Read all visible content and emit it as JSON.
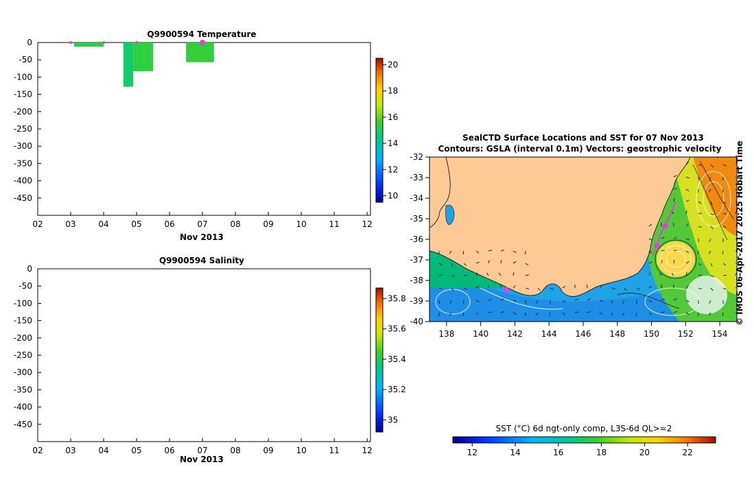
{
  "chart_data": [
    {
      "type": "heatmap",
      "title": "Q9900594  Temperature",
      "xlabel": "Nov 2013",
      "ylabel": "",
      "x_ticks": [
        "02",
        "03",
        "04",
        "05",
        "06",
        "07",
        "08",
        "09",
        "10",
        "11",
        "12"
      ],
      "y_ticks": [
        0,
        -50,
        -100,
        -150,
        -200,
        -250,
        -300,
        -350,
        -400,
        -450
      ],
      "xlim": [
        2,
        12.1
      ],
      "ylim": [
        -500,
        0
      ],
      "colorbar": {
        "ticks": [
          20,
          18,
          16,
          14,
          12,
          10
        ],
        "range": [
          9.5,
          20.5
        ]
      },
      "profiles": [
        {
          "x_start": 3.1,
          "x_end": 4.0,
          "depth": -12,
          "value": 15.2
        },
        {
          "x_start": 4.6,
          "x_end": 4.9,
          "depth": -128,
          "value": 14.8
        },
        {
          "x_start": 4.9,
          "x_end": 5.5,
          "depth": -83,
          "value": 15.3
        },
        {
          "x_start": 6.5,
          "x_end": 7.35,
          "depth": -57,
          "value": 15.4
        }
      ],
      "surface_markers_x": [
        3.0,
        4.0,
        5.0,
        7.0
      ]
    },
    {
      "type": "heatmap",
      "title": "Q9900594  Salinity",
      "xlabel": "Nov 2013",
      "ylabel": "",
      "x_ticks": [
        "02",
        "03",
        "04",
        "05",
        "06",
        "07",
        "08",
        "09",
        "10",
        "11",
        "12"
      ],
      "y_ticks": [
        0,
        -50,
        -100,
        -150,
        -200,
        -250,
        -300,
        -350,
        -400,
        -450
      ],
      "xlim": [
        2,
        12.1
      ],
      "ylim": [
        -500,
        0
      ],
      "colorbar": {
        "ticks": [
          35.8,
          35.6,
          35.4,
          35.2,
          35
        ],
        "range": [
          34.92,
          35.87
        ]
      },
      "profiles": []
    },
    {
      "type": "heatmap",
      "title": "SealCTD Surface Locations and SST for 07 Nov 2013",
      "subtitle": "Contours: GSLA (interval 0.1m) Vectors: geostrophic velocity",
      "x_ticks": [
        138,
        140,
        142,
        144,
        146,
        148,
        150,
        152,
        154
      ],
      "y_ticks": [
        -32,
        -33,
        -34,
        -35,
        -36,
        -37,
        -38,
        -39,
        -40
      ],
      "xlim": [
        137,
        155
      ],
      "ylim": [
        -40,
        -32
      ],
      "side_label": "© IMOS 06-Apr-2017 20:25 Hobart Time",
      "colorbar": {
        "label": "SST (°C) 6d ngt-only comp, L3S-6d QL>=2",
        "ticks": [
          12,
          14,
          16,
          18,
          20,
          22
        ],
        "range": [
          11.1,
          23.3
        ]
      },
      "seal_locations": [
        {
          "lon": 141.5,
          "lat": -38.45
        },
        {
          "lon": 150.3,
          "lat": -36.3
        },
        {
          "lon": 150.8,
          "lat": -35.35
        }
      ],
      "seal_track": [
        [
          150.1,
          -36.8
        ],
        [
          150.3,
          -36.3
        ],
        [
          150.5,
          -35.8
        ],
        [
          150.8,
          -35.35
        ],
        [
          151.1,
          -34.8
        ],
        [
          151.4,
          -34.2
        ]
      ]
    }
  ]
}
